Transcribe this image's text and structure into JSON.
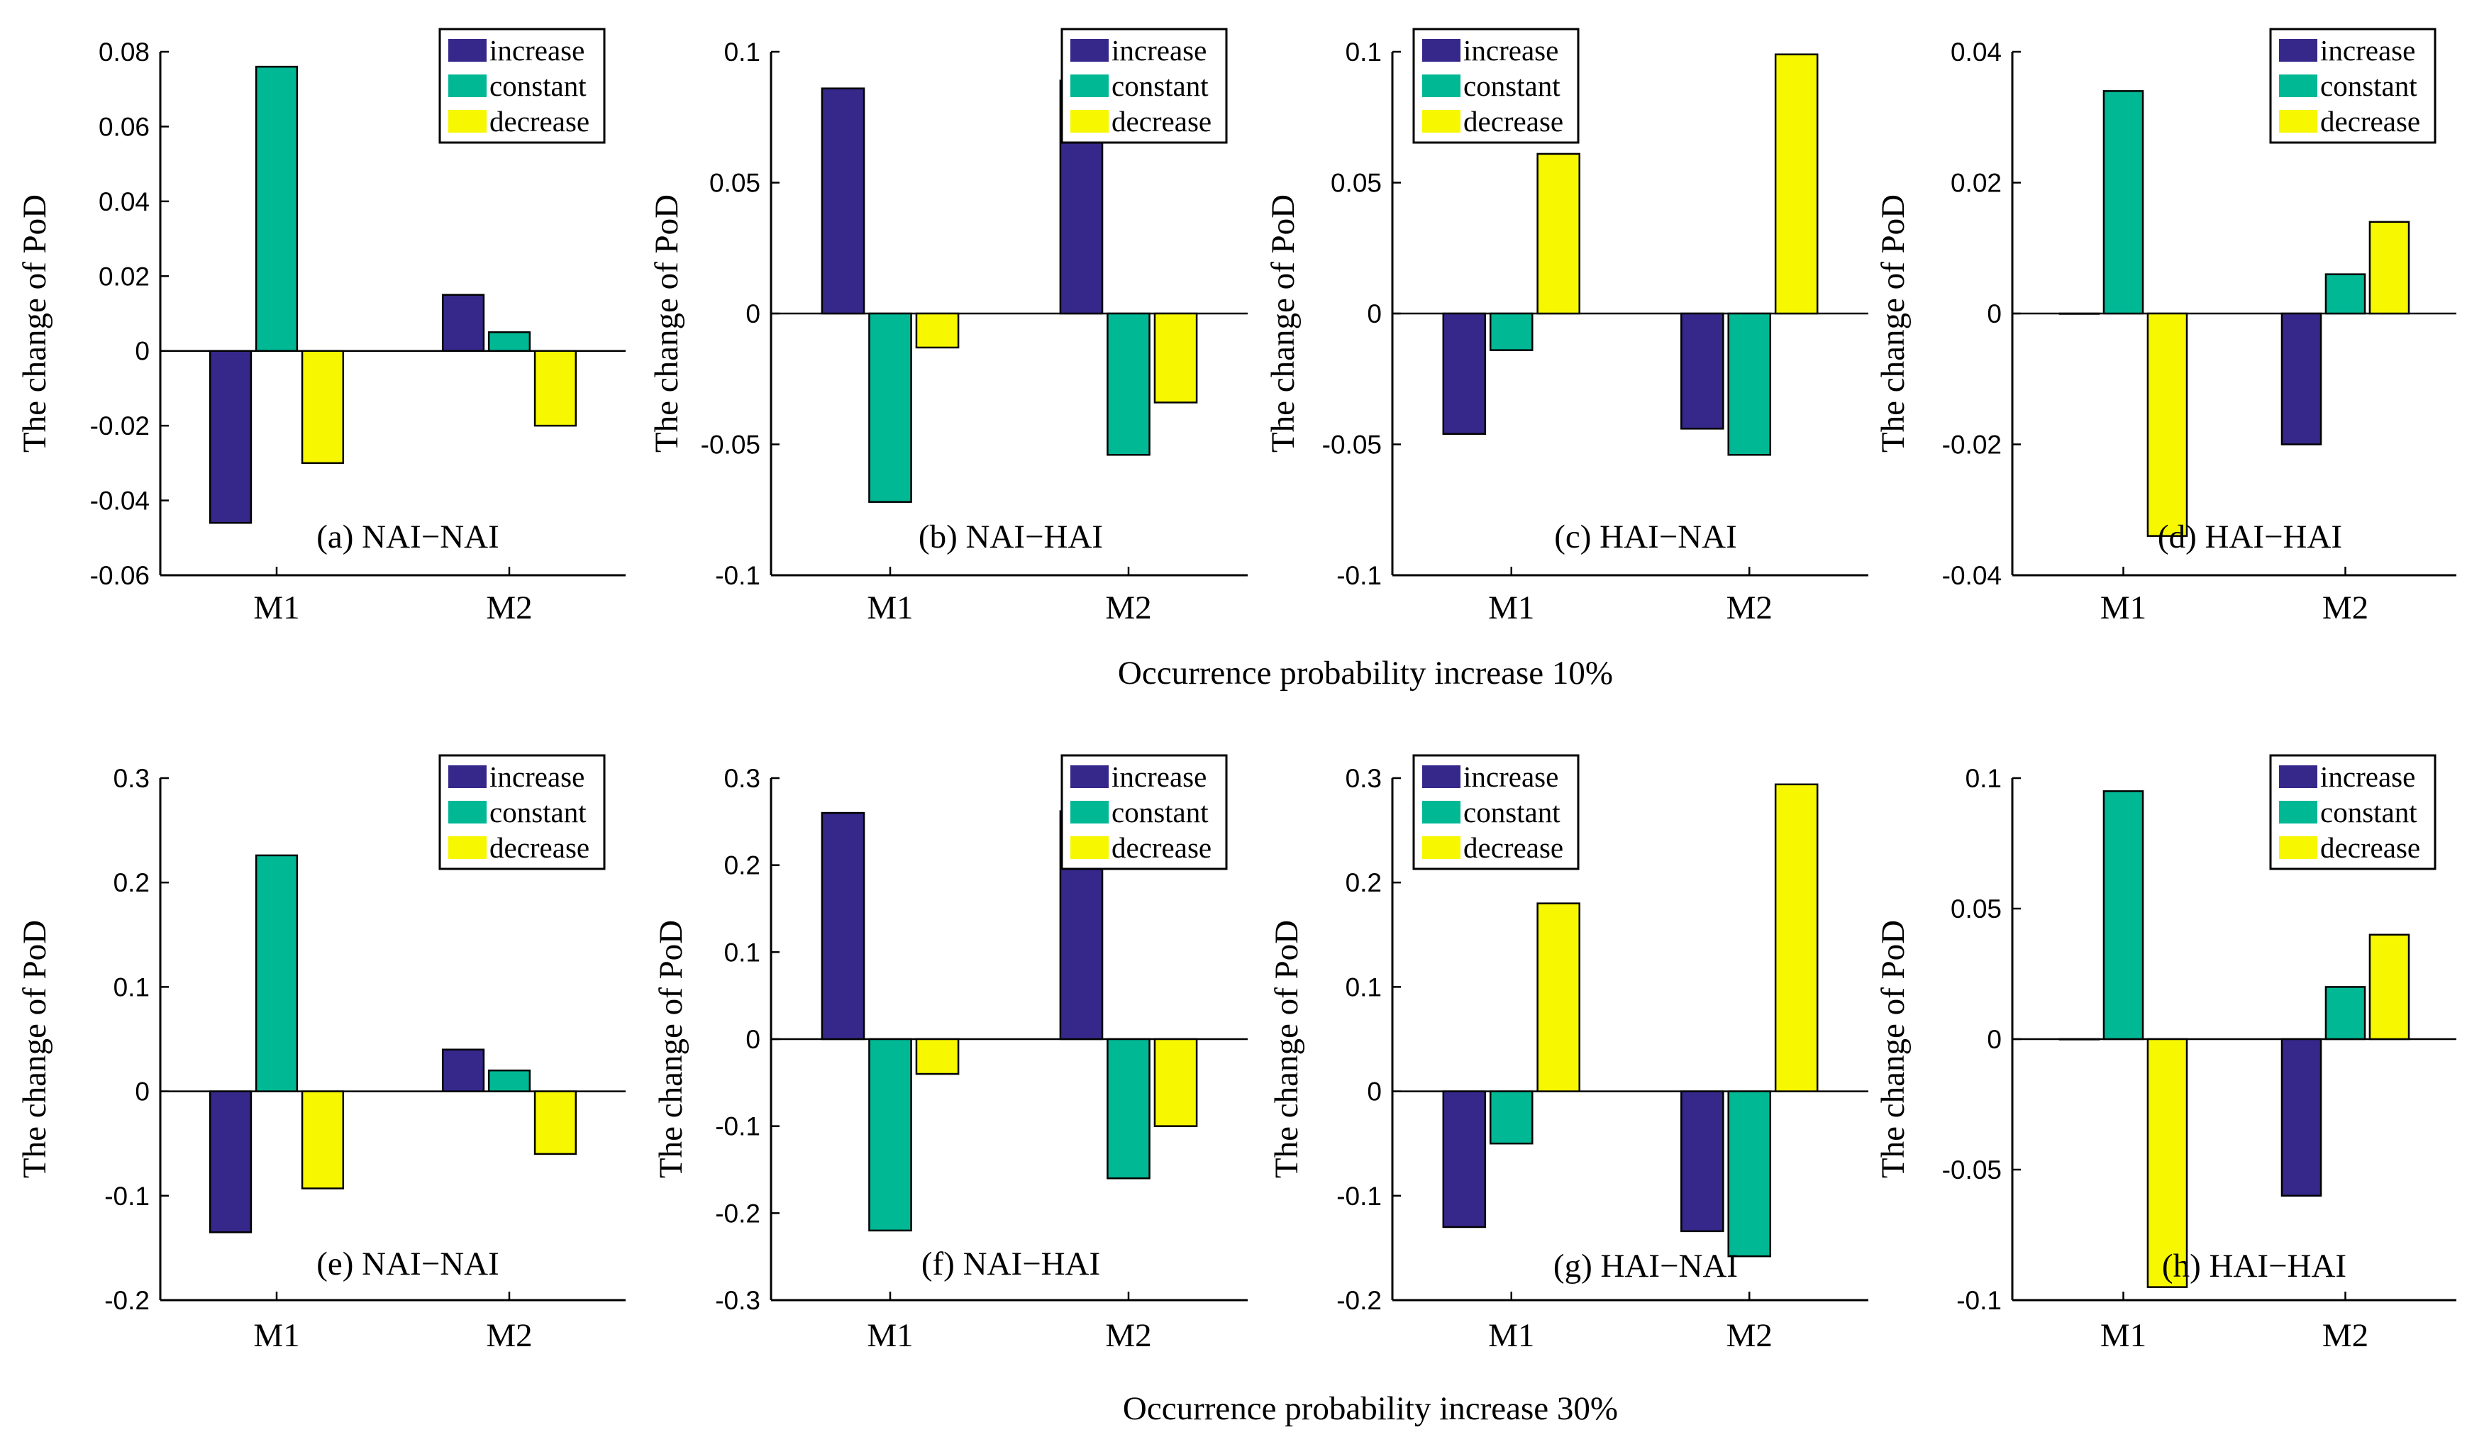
{
  "figure": {
    "colors": {
      "increase": "#35288a",
      "constant": "#00b894",
      "decrease": "#f7f700"
    },
    "legend_labels": [
      "increase",
      "constant",
      "decrease"
    ],
    "row_captions": [
      "Occurrence probability increase 10%",
      "Occurrence probability increase 30%"
    ]
  },
  "chart_data": [
    {
      "type": "bar",
      "title": "(a) NAI−NAI",
      "ylabel": "The change of PoD",
      "categories": [
        "M1",
        "M2"
      ],
      "ylim": [
        -0.06,
        0.08
      ],
      "yticks": [
        -0.06,
        -0.04,
        -0.02,
        0,
        0.02,
        0.04,
        0.06,
        0.08
      ],
      "ytick_labels": [
        "-0.06",
        "-0.04",
        "-0.02",
        "0",
        "0.02",
        "0.04",
        "0.06",
        "0.08"
      ],
      "legend": "top-right",
      "series": [
        {
          "name": "increase",
          "values": [
            -0.046,
            0.015
          ]
        },
        {
          "name": "constant",
          "values": [
            0.076,
            0.005
          ]
        },
        {
          "name": "decrease",
          "values": [
            -0.03,
            -0.02
          ]
        }
      ]
    },
    {
      "type": "bar",
      "title": "(b) NAI−HAI",
      "ylabel": "The change of PoD",
      "categories": [
        "M1",
        "M2"
      ],
      "ylim": [
        -0.1,
        0.1
      ],
      "yticks": [
        -0.1,
        -0.05,
        0,
        0.05,
        0.1
      ],
      "ytick_labels": [
        "-0.1",
        "-0.05",
        "0",
        "0.05",
        "0.1"
      ],
      "legend": "top-right",
      "series": [
        {
          "name": "increase",
          "values": [
            0.086,
            0.089
          ]
        },
        {
          "name": "constant",
          "values": [
            -0.072,
            -0.054
          ]
        },
        {
          "name": "decrease",
          "values": [
            -0.013,
            -0.034
          ]
        }
      ]
    },
    {
      "type": "bar",
      "title": "(c) HAI−NAI",
      "ylabel": "The change of PoD",
      "categories": [
        "M1",
        "M2"
      ],
      "ylim": [
        -0.1,
        0.1
      ],
      "yticks": [
        -0.1,
        -0.05,
        0,
        0.05,
        0.1
      ],
      "ytick_labels": [
        "-0.1",
        "-0.05",
        "0",
        "0.05",
        "0.1"
      ],
      "legend": "top-left",
      "series": [
        {
          "name": "increase",
          "values": [
            -0.046,
            -0.044
          ]
        },
        {
          "name": "constant",
          "values": [
            -0.014,
            -0.054
          ]
        },
        {
          "name": "decrease",
          "values": [
            0.061,
            0.099
          ]
        }
      ]
    },
    {
      "type": "bar",
      "title": "(d) HAI−HAI",
      "ylabel": "The change of PoD",
      "categories": [
        "M1",
        "M2"
      ],
      "ylim": [
        -0.04,
        0.04
      ],
      "yticks": [
        -0.04,
        -0.02,
        0,
        0.02,
        0.04
      ],
      "ytick_labels": [
        "-0.04",
        "-0.02",
        "0",
        "0.02",
        "0.04"
      ],
      "legend": "top-right",
      "series": [
        {
          "name": "increase",
          "values": [
            0,
            -0.02
          ]
        },
        {
          "name": "constant",
          "values": [
            0.034,
            0.006
          ]
        },
        {
          "name": "decrease",
          "values": [
            -0.034,
            0.014
          ]
        }
      ]
    },
    {
      "type": "bar",
      "title": "(e) NAI−NAI",
      "ylabel": "The change of PoD",
      "categories": [
        "M1",
        "M2"
      ],
      "ylim": [
        -0.2,
        0.3
      ],
      "yticks": [
        -0.2,
        -0.1,
        0,
        0.1,
        0.2,
        0.3
      ],
      "ytick_labels": [
        "-0.2",
        "-0.1",
        "0",
        "0.1",
        "0.2",
        "0.3"
      ],
      "legend": "top-right",
      "series": [
        {
          "name": "increase",
          "values": [
            -0.135,
            0.04
          ]
        },
        {
          "name": "constant",
          "values": [
            0.226,
            0.02
          ]
        },
        {
          "name": "decrease",
          "values": [
            -0.093,
            -0.06
          ]
        }
      ]
    },
    {
      "type": "bar",
      "title": "(f) NAI−HAI",
      "ylabel": "The change of PoD",
      "categories": [
        "M1",
        "M2"
      ],
      "ylim": [
        -0.3,
        0.3
      ],
      "yticks": [
        -0.3,
        -0.2,
        -0.1,
        0,
        0.1,
        0.2,
        0.3
      ],
      "ytick_labels": [
        "-0.3",
        "-0.2",
        "-0.1",
        "0",
        "0.1",
        "0.2",
        "0.3"
      ],
      "legend": "top-right",
      "series": [
        {
          "name": "increase",
          "values": [
            0.26,
            0.262
          ]
        },
        {
          "name": "constant",
          "values": [
            -0.22,
            -0.16
          ]
        },
        {
          "name": "decrease",
          "values": [
            -0.04,
            -0.1
          ]
        }
      ]
    },
    {
      "type": "bar",
      "title": "(g) HAI−NAI",
      "ylabel": "The change of PoD",
      "categories": [
        "M1",
        "M2"
      ],
      "ylim": [
        -0.2,
        0.3
      ],
      "yticks": [
        -0.2,
        -0.1,
        0,
        0.1,
        0.2,
        0.3
      ],
      "ytick_labels": [
        "-0.2",
        "-0.1",
        "0",
        "0.1",
        "0.2",
        "0.3"
      ],
      "legend": "top-left",
      "series": [
        {
          "name": "increase",
          "values": [
            -0.13,
            -0.134
          ]
        },
        {
          "name": "constant",
          "values": [
            -0.05,
            -0.158
          ]
        },
        {
          "name": "decrease",
          "values": [
            0.18,
            0.294
          ]
        }
      ]
    },
    {
      "type": "bar",
      "title": "(h) HAI−HAI",
      "ylabel": "The change of PoD",
      "categories": [
        "M1",
        "M2"
      ],
      "ylim": [
        -0.1,
        0.1
      ],
      "yticks": [
        -0.1,
        -0.05,
        0,
        0.05,
        0.1
      ],
      "ytick_labels": [
        "-0.1",
        "-0.05",
        "0",
        "0.05",
        "0.1"
      ],
      "legend": "top-right",
      "series": [
        {
          "name": "increase",
          "values": [
            0,
            -0.06
          ]
        },
        {
          "name": "constant",
          "values": [
            0.095,
            0.02
          ]
        },
        {
          "name": "decrease",
          "values": [
            -0.095,
            0.04
          ]
        }
      ]
    }
  ]
}
